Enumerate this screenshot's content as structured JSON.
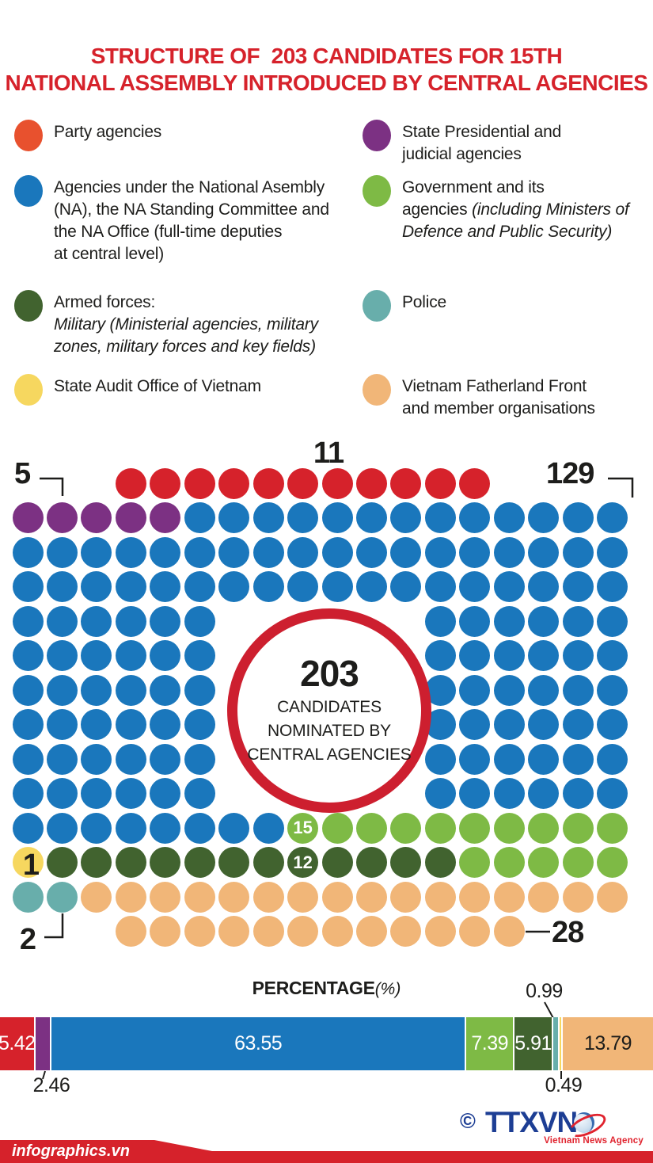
{
  "title": {
    "line1": "STRUCTURE OF  203 CANDIDATES FOR 15TH",
    "line2": "NATIONAL ASSEMBLY INTRODUCED BY CENTRAL AGENCIES"
  },
  "colors": {
    "party": "#e8512e",
    "red": "#d6222b",
    "purple": "#7c3183",
    "blue": "#1a77bc",
    "green": "#7eba45",
    "darkgreen": "#41632f",
    "teal": "#68aeab",
    "yellow": "#f6d75f",
    "orange": "#f1b678",
    "title_red": "#d6222b",
    "logo_blue": "#1d3e94",
    "logo_red": "#e0232e"
  },
  "legend": {
    "items": [
      {
        "color": "party",
        "lines": [
          [
            {
              "text": "Party agencies",
              "italic": false
            }
          ]
        ]
      },
      {
        "color": "purple",
        "lines": [
          [
            {
              "text": "State Presidential and",
              "italic": false
            }
          ],
          [
            {
              "text": "judicial agencies",
              "italic": false
            }
          ]
        ]
      },
      {
        "color": "blue",
        "lines": [
          [
            {
              "text": "Agencies under the National Asembly",
              "italic": false
            }
          ],
          [
            {
              "text": "(NA), the NA Standing Committee and",
              "italic": false
            }
          ],
          [
            {
              "text": "the NA Office (full-time deputies",
              "italic": false
            }
          ],
          [
            {
              "text": "at central level)",
              "italic": false
            }
          ]
        ]
      },
      {
        "color": "green",
        "lines": [
          [
            {
              "text": "Government and its",
              "italic": false
            }
          ],
          [
            {
              "text": "agencies ",
              "italic": false
            },
            {
              "text": "(including Ministers of",
              "italic": true
            }
          ],
          [
            {
              "text": "Defence and Public Security)",
              "italic": true
            }
          ]
        ]
      },
      {
        "color": "darkgreen",
        "lines": [
          [
            {
              "text": "Armed forces:",
              "italic": false
            }
          ],
          [
            {
              "text": "Military (Ministerial agencies, military",
              "italic": true
            }
          ],
          [
            {
              "text": "zones, military forces and key fields)",
              "italic": true
            }
          ]
        ]
      },
      {
        "color": "teal",
        "lines": [
          [
            {
              "text": "Police",
              "italic": false
            }
          ]
        ]
      },
      {
        "color": "yellow",
        "lines": [
          [
            {
              "text": "State Audit Office of Vietnam",
              "italic": false
            }
          ]
        ]
      },
      {
        "color": "orange",
        "lines": [
          [
            {
              "text": "Vietnam Fatherland Front",
              "italic": false
            }
          ],
          [
            {
              "text": "and member organisations",
              "italic": false
            }
          ]
        ]
      }
    ]
  },
  "chart_data": [
    {
      "type": "pictogram",
      "title": "STRUCTURE OF 203 CANDIDATES FOR 15TH NATIONAL ASSEMBLY INTRODUCED BY CENTRAL AGENCIES",
      "total": 203,
      "categories": [
        "Party agencies",
        "State Presidential and judicial agencies",
        "Agencies under the National Asembly (NA), the NA Standing Committee and the NA Office (full-time deputies at central level)",
        "Government and its agencies (including Ministers of Defence and Public Security)",
        "Armed forces: Military (Ministerial agencies, military zones, military forces and key fields)",
        "Police",
        "State Audit Office of Vietnam",
        "Vietnam Fatherland Front and member organisations"
      ],
      "values": [
        11,
        5,
        129,
        15,
        12,
        2,
        1,
        28
      ],
      "grid": {
        "columns": 18,
        "rows": 14
      }
    },
    {
      "type": "bar",
      "stacked": true,
      "title": "PERCENTAGE(%)",
      "categories": [
        "Party agencies",
        "State Presidential and judicial agencies",
        "Agencies under the National Asembly",
        "Government and its agencies",
        "Armed forces: Military",
        "Police",
        "State Audit Office of Vietnam",
        "Vietnam Fatherland Front and member organisations"
      ],
      "values": [
        5.42,
        2.46,
        63.55,
        7.39,
        5.91,
        0.99,
        0.49,
        13.79
      ],
      "xlim": [
        0,
        100
      ],
      "legend_position": "none"
    }
  ],
  "matrix": {
    "callouts": {
      "party": "11",
      "presidential": "5",
      "na": "129",
      "audit": "1",
      "police": "2",
      "vff": "28"
    },
    "rows": [
      [
        {
          "color": "red",
          "from": 4,
          "to": 14
        }
      ],
      [
        {
          "color": "purple",
          "from": 1,
          "to": 5
        },
        {
          "color": "blue",
          "from": 6,
          "to": 18
        }
      ],
      [
        {
          "color": "blue",
          "from": 1,
          "to": 18
        }
      ],
      [
        {
          "color": "blue",
          "from": 1,
          "to": 18
        }
      ],
      [
        {
          "color": "blue",
          "from": 1,
          "to": 6
        },
        {
          "color": "blue",
          "from": 13,
          "to": 18
        }
      ],
      [
        {
          "color": "blue",
          "from": 1,
          "to": 6
        },
        {
          "color": "blue",
          "from": 13,
          "to": 18
        }
      ],
      [
        {
          "color": "blue",
          "from": 1,
          "to": 6
        },
        {
          "color": "blue",
          "from": 13,
          "to": 18
        }
      ],
      [
        {
          "color": "blue",
          "from": 1,
          "to": 6
        },
        {
          "color": "blue",
          "from": 13,
          "to": 18
        }
      ],
      [
        {
          "color": "blue",
          "from": 1,
          "to": 6
        },
        {
          "color": "blue",
          "from": 13,
          "to": 18
        }
      ],
      [
        {
          "color": "blue",
          "from": 1,
          "to": 6
        },
        {
          "color": "blue",
          "from": 13,
          "to": 18
        }
      ],
      [
        {
          "color": "blue",
          "from": 1,
          "to": 8
        },
        {
          "color": "green",
          "from": 9,
          "to": 18,
          "label": "15",
          "label_col": 9
        }
      ],
      [
        {
          "color": "yellow",
          "from": 1,
          "to": 1
        },
        {
          "color": "darkgreen",
          "from": 2,
          "to": 13,
          "label": "12",
          "label_col": 9
        },
        {
          "color": "green",
          "from": 14,
          "to": 18
        }
      ],
      [
        {
          "color": "teal",
          "from": 1,
          "to": 2
        },
        {
          "color": "orange",
          "from": 3,
          "to": 18
        }
      ],
      [
        {
          "color": "orange",
          "from": 4,
          "to": 15
        }
      ]
    ]
  },
  "center_badge": {
    "value": "203",
    "lines": [
      "CANDIDATES",
      "NOMINATED BY",
      "CENTRAL AGENCIES"
    ]
  },
  "bar": {
    "title_bold": "PERCENTAGE",
    "title_italic": "(%)",
    "segments": [
      {
        "value": "5.42",
        "pct": 5.42,
        "color": "red",
        "inside": true,
        "text": "#ffffff"
      },
      {
        "value": "2.46",
        "pct": 2.46,
        "color": "purple",
        "inside": false
      },
      {
        "value": "63.55",
        "pct": 63.55,
        "color": "blue",
        "inside": true,
        "text": "#ffffff"
      },
      {
        "value": "7.39",
        "pct": 7.39,
        "color": "green",
        "inside": true,
        "text": "#ffffff"
      },
      {
        "value": "5.91",
        "pct": 5.91,
        "color": "darkgreen",
        "inside": true,
        "text": "#ffffff"
      },
      {
        "value": "0.99",
        "pct": 0.99,
        "color": "teal",
        "inside": false
      },
      {
        "value": "0.49",
        "pct": 0.49,
        "color": "yellow",
        "inside": false
      },
      {
        "value": "13.79",
        "pct": 13.79,
        "color": "orange",
        "inside": true,
        "text": "#1d1d1b"
      }
    ]
  },
  "footer": {
    "site": "infographics.vn",
    "copyright": "©",
    "logo": "TTXVN",
    "tagline": "Vietnam News Agency"
  }
}
